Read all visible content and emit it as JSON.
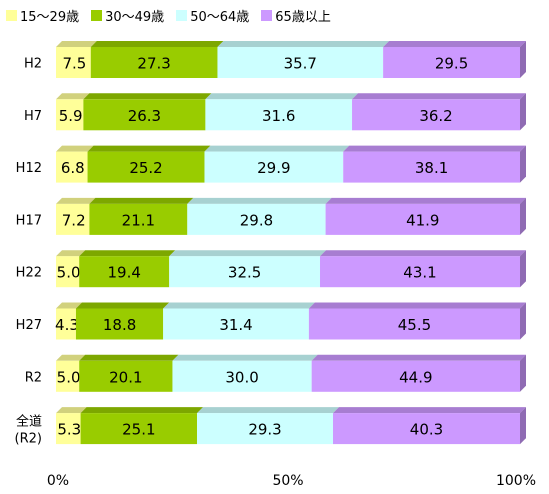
{
  "chart_data": {
    "type": "bar",
    "orientation": "horizontal",
    "stacked": true,
    "percent": true,
    "categories": [
      "H2",
      "H7",
      "H12",
      "H17",
      "H22",
      "H27",
      "R2",
      "全道|(R2)"
    ],
    "series": [
      {
        "name": "15～29歳",
        "color": "#ffff99",
        "values": [
          7.5,
          5.9,
          6.8,
          7.2,
          5.0,
          4.3,
          5.0,
          5.3
        ]
      },
      {
        "name": "30～49歳",
        "color": "#99cc00",
        "values": [
          27.3,
          26.3,
          25.2,
          21.1,
          19.4,
          18.8,
          20.1,
          25.1
        ]
      },
      {
        "name": "50～64歳",
        "color": "#ccffff",
        "values": [
          35.7,
          31.6,
          29.9,
          29.8,
          32.5,
          31.4,
          30.0,
          29.3
        ]
      },
      {
        "name": "65歳以上",
        "color": "#cc99ff",
        "values": [
          29.5,
          36.2,
          38.1,
          41.9,
          43.1,
          45.5,
          44.9,
          40.3
        ]
      }
    ],
    "x_ticks": [
      "0%",
      "50%",
      "100%"
    ],
    "xlim": [
      0,
      100
    ],
    "legend_position": "top-left",
    "grid": false
  }
}
